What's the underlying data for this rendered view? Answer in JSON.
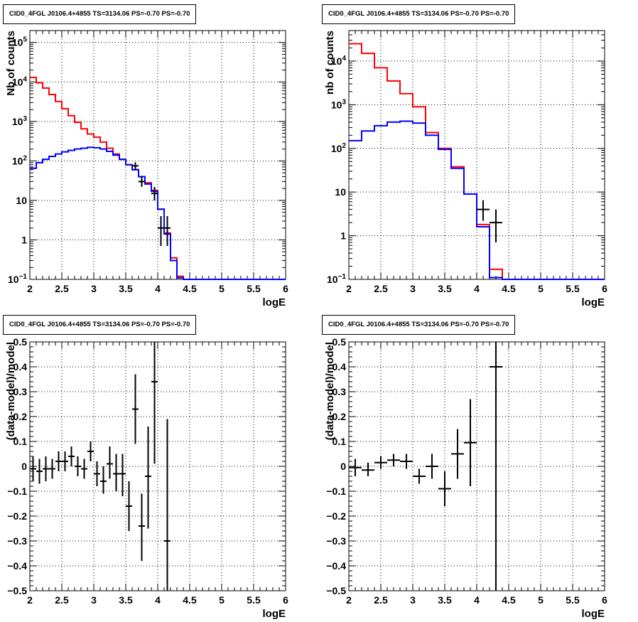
{
  "chart_data": [
    {
      "panel": "top-left",
      "type": "line",
      "title": "CID0_4FGL J0106.4+4855 TS=3134.06 PS=-0.70 PS=-0.70",
      "xlabel": "logE",
      "ylabel": "Nb of counts",
      "xlim": [
        2,
        6
      ],
      "ylim": [
        0.1,
        200000
      ],
      "ylog": true,
      "grid": true,
      "xticks": [
        "2",
        "2.5",
        "3",
        "3.5",
        "4",
        "4.5",
        "5",
        "5.5",
        "6"
      ],
      "yticks": [
        {
          "v": 0.1,
          "label": "10",
          "sup": "−1"
        },
        {
          "v": 1,
          "label": "1",
          "sup": ""
        },
        {
          "v": 10,
          "label": "10",
          "sup": ""
        },
        {
          "v": 100,
          "label": "10",
          "sup": "2"
        },
        {
          "v": 1000,
          "label": "10",
          "sup": "3"
        },
        {
          "v": 10000,
          "label": "10",
          "sup": "4"
        },
        {
          "v": 100000,
          "label": "10",
          "sup": "5"
        }
      ],
      "bin_edges": [
        2.0,
        2.1,
        2.2,
        2.3,
        2.4,
        2.5,
        2.6,
        2.7,
        2.8,
        2.9,
        3.0,
        3.1,
        3.2,
        3.3,
        3.4,
        3.5,
        3.6,
        3.7,
        3.8,
        3.9,
        4.0,
        4.1,
        4.2,
        4.3,
        4.4,
        4.5,
        4.6,
        4.7,
        4.8,
        4.9,
        5.0,
        5.1,
        5.2,
        5.3,
        5.4,
        5.5,
        5.6,
        5.7,
        5.8,
        5.9,
        6.0
      ],
      "series": [
        {
          "color": "#ff0000",
          "kind": "hist",
          "values": [
            13000,
            9500,
            7000,
            4800,
            3200,
            2100,
            1400,
            950,
            650,
            480,
            400,
            300,
            210,
            150,
            110,
            80,
            60,
            40,
            28,
            18,
            6,
            1.5,
            0.35,
            0.12,
            0.1,
            0.1,
            0.1,
            0.1,
            0.1,
            0.1,
            0.1,
            0.1,
            0.1,
            0.1,
            0.1,
            0.1,
            0.1,
            0.1,
            0.1,
            0.1
          ]
        },
        {
          "color": "#0000ff",
          "kind": "hist",
          "values": [
            65,
            90,
            110,
            130,
            150,
            170,
            185,
            200,
            210,
            220,
            215,
            200,
            175,
            140,
            110,
            80,
            60,
            40,
            26,
            17,
            6,
            1.4,
            0.3,
            0.11,
            0.1,
            0.1,
            0.1,
            0.1,
            0.1,
            0.1,
            0.1,
            0.1,
            0.1,
            0.1,
            0.1,
            0.1,
            0.1,
            0.1,
            0.1,
            0.1
          ]
        },
        {
          "color": "#000000",
          "kind": "points",
          "points": [
            {
              "x": 3.65,
              "y": 75,
              "lo": 60,
              "hi": 92,
              "xerr": 0.05
            },
            {
              "x": 3.75,
              "y": 30,
              "lo": 22,
              "hi": 40,
              "xerr": 0.05
            },
            {
              "x": 3.95,
              "y": 15,
              "lo": 10,
              "hi": 22,
              "xerr": 0.05
            },
            {
              "x": 4.05,
              "y": 2,
              "lo": 0.7,
              "hi": 4,
              "xerr": 0.05
            },
            {
              "x": 4.15,
              "y": 2,
              "lo": 0.7,
              "hi": 4,
              "xerr": 0.05
            }
          ]
        }
      ]
    },
    {
      "panel": "top-right",
      "type": "line",
      "title": "CID0_4FGL J0106.4+4855 TS=3134.06 PS=-0.70 PS=-0.70",
      "xlabel": "logE",
      "ylabel": "nb of counts",
      "xlim": [
        2,
        6
      ],
      "ylim": [
        0.1,
        50000
      ],
      "ylog": true,
      "grid": true,
      "xticks": [
        "2",
        "2.5",
        "3",
        "3.5",
        "4",
        "4.5",
        "5",
        "5.5",
        "6"
      ],
      "yticks": [
        {
          "v": 0.1,
          "label": "10",
          "sup": "−1"
        },
        {
          "v": 1,
          "label": "1",
          "sup": ""
        },
        {
          "v": 10,
          "label": "10",
          "sup": ""
        },
        {
          "v": 100,
          "label": "10",
          "sup": "2"
        },
        {
          "v": 1000,
          "label": "10",
          "sup": "3"
        },
        {
          "v": 10000,
          "label": "10",
          "sup": "4"
        }
      ],
      "bin_edges": [
        2.0,
        2.2,
        2.4,
        2.6,
        2.8,
        3.0,
        3.2,
        3.4,
        3.6,
        3.8,
        4.0,
        4.2,
        4.4,
        4.6,
        4.8,
        5.0,
        5.2,
        5.4,
        5.6,
        5.8,
        6.0
      ],
      "series": [
        {
          "color": "#ff0000",
          "kind": "hist",
          "values": [
            25000,
            15000,
            7000,
            3500,
            1800,
            900,
            230,
            100,
            38,
            9,
            1.8,
            0.17,
            0.1,
            0.1,
            0.1,
            0.1,
            0.1,
            0.1,
            0.1,
            0.1
          ]
        },
        {
          "color": "#0000ff",
          "kind": "hist",
          "values": [
            150,
            250,
            330,
            400,
            420,
            380,
            200,
            95,
            35,
            9,
            1.6,
            0.11,
            0.1,
            0.1,
            0.1,
            0.1,
            0.1,
            0.1,
            0.1,
            0.1
          ]
        },
        {
          "color": "#000000",
          "kind": "points",
          "points": [
            {
              "x": 4.1,
              "y": 4,
              "lo": 2.2,
              "hi": 6.5,
              "xerr": 0.1
            },
            {
              "x": 4.3,
              "y": 2,
              "lo": 0.7,
              "hi": 4,
              "xerr": 0.1
            }
          ]
        }
      ]
    },
    {
      "panel": "bottom-left",
      "type": "scatter",
      "title": "CID0_4FGL J0106.4+4855 TS=3134.06 PS=-0.70 PS=-0.70",
      "xlabel": "logE",
      "ylabel": "(data-model)/model",
      "xlim": [
        2,
        6
      ],
      "ylim": [
        -0.5,
        0.5
      ],
      "ylog": false,
      "grid": true,
      "xticks": [
        "2",
        "2.5",
        "3",
        "3.5",
        "4",
        "4.5",
        "5",
        "5.5",
        "6"
      ],
      "yticks": [
        {
          "v": -0.5,
          "label": "−0.5",
          "sup": ""
        },
        {
          "v": -0.4,
          "label": "−0.4",
          "sup": ""
        },
        {
          "v": -0.3,
          "label": "−0.3",
          "sup": ""
        },
        {
          "v": -0.2,
          "label": "−0.2",
          "sup": ""
        },
        {
          "v": -0.1,
          "label": "−0.1",
          "sup": ""
        },
        {
          "v": 0,
          "label": "0",
          "sup": ""
        },
        {
          "v": 0.1,
          "label": "0.1",
          "sup": ""
        },
        {
          "v": 0.2,
          "label": "0.2",
          "sup": ""
        },
        {
          "v": 0.3,
          "label": "0.3",
          "sup": ""
        },
        {
          "v": 0.4,
          "label": "0.4",
          "sup": ""
        },
        {
          "v": 0.5,
          "label": "0.5",
          "sup": ""
        }
      ],
      "series": [
        {
          "color": "#000000",
          "kind": "points",
          "points": [
            {
              "x": 2.05,
              "y": -0.01,
              "lo": -0.06,
              "hi": 0.04,
              "xerr": 0.05
            },
            {
              "x": 2.15,
              "y": -0.02,
              "lo": -0.07,
              "hi": 0.03,
              "xerr": 0.05
            },
            {
              "x": 2.25,
              "y": -0.01,
              "lo": -0.06,
              "hi": 0.04,
              "xerr": 0.05
            },
            {
              "x": 2.35,
              "y": -0.01,
              "lo": -0.05,
              "hi": 0.03,
              "xerr": 0.05
            },
            {
              "x": 2.45,
              "y": 0.02,
              "lo": -0.02,
              "hi": 0.06,
              "xerr": 0.05
            },
            {
              "x": 2.55,
              "y": 0.02,
              "lo": -0.02,
              "hi": 0.06,
              "xerr": 0.05
            },
            {
              "x": 2.65,
              "y": 0.04,
              "lo": 0.0,
              "hi": 0.08,
              "xerr": 0.05
            },
            {
              "x": 2.75,
              "y": 0.0,
              "lo": -0.04,
              "hi": 0.04,
              "xerr": 0.05
            },
            {
              "x": 2.85,
              "y": -0.01,
              "lo": -0.05,
              "hi": 0.03,
              "xerr": 0.05
            },
            {
              "x": 2.95,
              "y": 0.06,
              "lo": 0.02,
              "hi": 0.1,
              "xerr": 0.05
            },
            {
              "x": 3.05,
              "y": -0.03,
              "lo": -0.08,
              "hi": 0.02,
              "xerr": 0.05
            },
            {
              "x": 3.15,
              "y": -0.06,
              "lo": -0.11,
              "hi": 0.0,
              "xerr": 0.05
            },
            {
              "x": 3.25,
              "y": 0.01,
              "lo": -0.05,
              "hi": 0.08,
              "xerr": 0.05
            },
            {
              "x": 3.35,
              "y": -0.03,
              "lo": -0.1,
              "hi": 0.05,
              "xerr": 0.05
            },
            {
              "x": 3.45,
              "y": -0.03,
              "lo": -0.12,
              "hi": 0.05,
              "xerr": 0.05
            },
            {
              "x": 3.55,
              "y": -0.16,
              "lo": -0.26,
              "hi": -0.06,
              "xerr": 0.05
            },
            {
              "x": 3.65,
              "y": 0.23,
              "lo": 0.09,
              "hi": 0.37,
              "xerr": 0.05
            },
            {
              "x": 3.75,
              "y": -0.24,
              "lo": -0.38,
              "hi": -0.11,
              "xerr": 0.05
            },
            {
              "x": 3.85,
              "y": -0.04,
              "lo": -0.25,
              "hi": 0.16,
              "xerr": 0.05
            },
            {
              "x": 3.95,
              "y": 0.34,
              "lo": 0.01,
              "hi": 0.5,
              "xerr": 0.05
            },
            {
              "x": 4.15,
              "y": -0.3,
              "lo": -0.5,
              "hi": 0.19,
              "xerr": 0.05
            }
          ]
        }
      ]
    },
    {
      "panel": "bottom-right",
      "type": "scatter",
      "title": "CID0_4FGL J0106.4+4855 TS=3134.06 PS=-0.70 PS=-0.70",
      "xlabel": "logE",
      "ylabel": "(data-model)/model",
      "xlim": [
        2,
        6
      ],
      "ylim": [
        -0.5,
        0.5
      ],
      "ylog": false,
      "grid": true,
      "xticks": [
        "2",
        "2.5",
        "3",
        "3.5",
        "4",
        "4.5",
        "5",
        "5.5",
        "6"
      ],
      "yticks": [
        {
          "v": -0.5,
          "label": "−0.5",
          "sup": ""
        },
        {
          "v": -0.4,
          "label": "−0.4",
          "sup": ""
        },
        {
          "v": -0.3,
          "label": "−0.3",
          "sup": ""
        },
        {
          "v": -0.2,
          "label": "−0.2",
          "sup": ""
        },
        {
          "v": -0.1,
          "label": "−0.1",
          "sup": ""
        },
        {
          "v": 0,
          "label": "0",
          "sup": ""
        },
        {
          "v": 0.1,
          "label": "0.1",
          "sup": ""
        },
        {
          "v": 0.2,
          "label": "0.2",
          "sup": ""
        },
        {
          "v": 0.3,
          "label": "0.3",
          "sup": ""
        },
        {
          "v": 0.4,
          "label": "0.4",
          "sup": ""
        },
        {
          "v": 0.5,
          "label": "0.5",
          "sup": ""
        }
      ],
      "series": [
        {
          "color": "#000000",
          "kind": "points",
          "points": [
            {
              "x": 2.1,
              "y": -0.005,
              "lo": -0.04,
              "hi": 0.03,
              "xerr": 0.1
            },
            {
              "x": 2.3,
              "y": -0.015,
              "lo": -0.04,
              "hi": 0.015,
              "xerr": 0.1
            },
            {
              "x": 2.5,
              "y": 0.015,
              "lo": -0.01,
              "hi": 0.04,
              "xerr": 0.1
            },
            {
              "x": 2.7,
              "y": 0.025,
              "lo": 0.0,
              "hi": 0.05,
              "xerr": 0.1
            },
            {
              "x": 2.9,
              "y": 0.02,
              "lo": -0.01,
              "hi": 0.05,
              "xerr": 0.1
            },
            {
              "x": 3.1,
              "y": -0.04,
              "lo": -0.07,
              "hi": -0.01,
              "xerr": 0.1
            },
            {
              "x": 3.3,
              "y": 0.0,
              "lo": -0.05,
              "hi": 0.05,
              "xerr": 0.1
            },
            {
              "x": 3.5,
              "y": -0.09,
              "lo": -0.16,
              "hi": -0.02,
              "xerr": 0.1
            },
            {
              "x": 3.7,
              "y": 0.05,
              "lo": -0.05,
              "hi": 0.15,
              "xerr": 0.1
            },
            {
              "x": 3.9,
              "y": 0.095,
              "lo": -0.08,
              "hi": 0.27,
              "xerr": 0.1
            },
            {
              "x": 4.3,
              "y": 0.4,
              "lo": -0.5,
              "hi": 0.5,
              "xerr": 0.1
            }
          ]
        }
      ]
    }
  ]
}
